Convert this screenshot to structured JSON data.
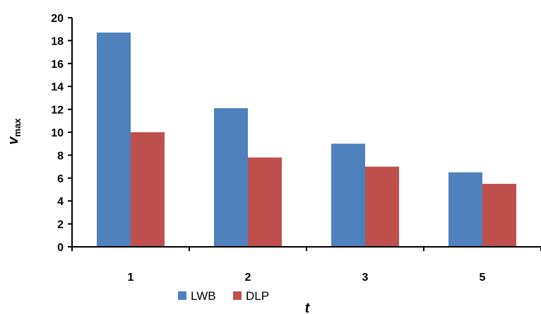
{
  "chart_data": {
    "type": "bar",
    "title": "",
    "categories": [
      "1",
      "2",
      "3",
      "5"
    ],
    "series": [
      {
        "name": "LWB",
        "values": [
          18.7,
          12.1,
          9.0,
          6.5
        ],
        "color": "#4f81bd"
      },
      {
        "name": "DLP",
        "values": [
          10.0,
          7.8,
          7.0,
          5.5
        ],
        "color": "#c0504d"
      }
    ],
    "xlabel": "t",
    "ylabel": {
      "main": "v",
      "subscript": "max"
    },
    "ylim": [
      0,
      20
    ],
    "yticks": [
      "0",
      "2",
      "4",
      "6",
      "8",
      "10",
      "12",
      "14",
      "16",
      "18",
      "20"
    ],
    "grid": false,
    "legend_position": "bottom"
  }
}
